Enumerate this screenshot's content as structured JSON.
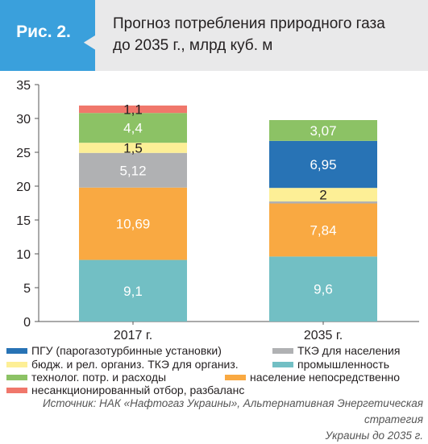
{
  "header": {
    "badge": "Рис. 2.",
    "title_line1": "Прогноз потребления природного газа",
    "title_line2": "до 2035 г., млрд куб. м",
    "header_bg": "#e9e9ea",
    "badge_bg": "#3aa0dc"
  },
  "chart_data": {
    "type": "bar",
    "stacked": true,
    "categories": [
      "2017 г.",
      "2035 г."
    ],
    "ylim": [
      0,
      35
    ],
    "yticks": [
      0,
      5,
      10,
      15,
      20,
      25,
      30,
      35
    ],
    "grid": false,
    "legend_position": "bottom",
    "series": [
      {
        "name": "промышленность",
        "color": "#72bfc4",
        "values": [
          9.1,
          9.6
        ],
        "labels": [
          "9,1",
          "9,6"
        ]
      },
      {
        "name": "население непосредственно",
        "color": "#f9a942",
        "values": [
          10.69,
          7.84
        ],
        "labels": [
          "10,69",
          "7,84"
        ]
      },
      {
        "name": "ТКЭ для населения",
        "color": "#b0b1b3",
        "values": [
          5.12,
          0.3
        ],
        "labels": [
          "5,12",
          ""
        ]
      },
      {
        "name": "бюдж. и рел. организ. ТКЭ для организ.",
        "color": "#fdef96",
        "values": [
          1.5,
          2.0
        ],
        "labels": [
          "1,5",
          "2"
        ]
      },
      {
        "name": "ПГУ (парогазотурбинные установки)",
        "color": "#2873b5",
        "values": [
          0,
          6.95
        ],
        "labels": [
          "",
          "6,95"
        ]
      },
      {
        "name": "технолог. потр. и расходы",
        "color": "#8cc265",
        "values": [
          4.4,
          3.07
        ],
        "labels": [
          "4,4",
          "3,07"
        ]
      },
      {
        "name": "несанкционированный отбор, разбаланс",
        "color": "#f0776b",
        "values": [
          1.1,
          0
        ],
        "labels": [
          "1,1",
          ""
        ]
      }
    ]
  },
  "legend": [
    {
      "label": "ПГУ (парогазотурбинные установки)",
      "color": "#2873b5"
    },
    {
      "label": "ТКЭ для населения",
      "color": "#b0b1b3"
    },
    {
      "label": "бюдж. и рел. организ. ТКЭ для организ.",
      "color": "#fdef96"
    },
    {
      "label": "промышленность",
      "color": "#72bfc4"
    },
    {
      "label": "технолог. потр. и расходы",
      "color": "#8cc265"
    },
    {
      "label": "население непосредственно",
      "color": "#f9a942"
    },
    {
      "label": "несанкционированный отбор, разбаланс",
      "color": "#f0776b"
    }
  ],
  "source": {
    "line1": "Источник: НАК «Нафтогаз Украины», Альтернативная Энергетическая стратегия",
    "line2": "Украины до 2035 г."
  }
}
